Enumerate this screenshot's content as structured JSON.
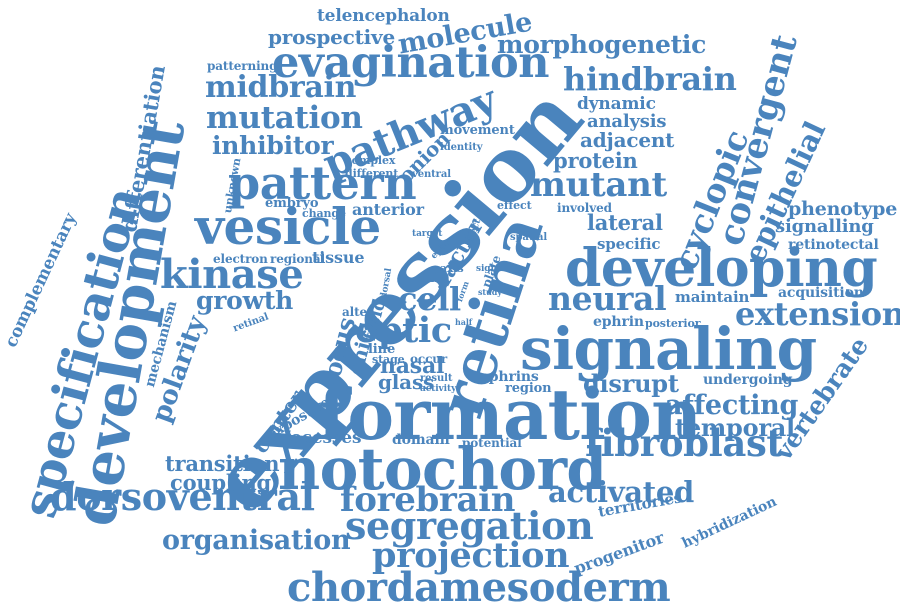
{
  "colors": {
    "word": "#4a84bd",
    "background": "#ffffff"
  },
  "words": [
    "expression",
    "formation",
    "retina",
    "development",
    "specification",
    "notochord",
    "signaling",
    "developing",
    "vesicle",
    "pattern",
    "evagination",
    "pathway",
    "segregation",
    "kinase",
    "dorsoventral",
    "chordamesoderm",
    "fibroblast",
    "neural",
    "forebrain",
    "projection",
    "mutant",
    "cyclopic",
    "hindbrain",
    "convergent",
    "extension",
    "optic",
    "cell",
    "growth",
    "epithelial",
    "mutation",
    "midbrain",
    "inhibitor",
    "activated",
    "organisation",
    "molecule",
    "morphogenetic",
    "prospective",
    "telencephalon",
    "differentiation",
    "complementary",
    "polarity",
    "affecting",
    "vertebrate",
    "temporal",
    "disrupt",
    "transition",
    "coupling",
    "processes",
    "lateral",
    "protein",
    "adjacent",
    "analysis",
    "dynamic",
    "phenotype",
    "signalling",
    "retinotectal",
    "acquisition",
    "maintain",
    "posterior",
    "ephrin",
    "specific",
    "nasal",
    "glass",
    "locus",
    "chick",
    "field",
    "center",
    "exposure",
    "mechanism",
    "tissue",
    "territories",
    "progenitor",
    "hybridization",
    "undergoing",
    "ephrins",
    "region",
    "domain",
    "potential",
    "factor",
    "onion",
    "anterior",
    "movement",
    "patterning",
    "embryo",
    "electron",
    "regional",
    "involved",
    "spatial",
    "effect",
    "identity",
    "complex",
    "different",
    "unknown",
    "change",
    "ventral",
    "line",
    "stage",
    "occur",
    "result",
    "activity",
    "alter",
    "retinal",
    "dorsal",
    "tail",
    "ephs",
    "axis",
    "signal",
    "plate",
    "study",
    "half",
    "target",
    "affect",
    "form"
  ]
}
